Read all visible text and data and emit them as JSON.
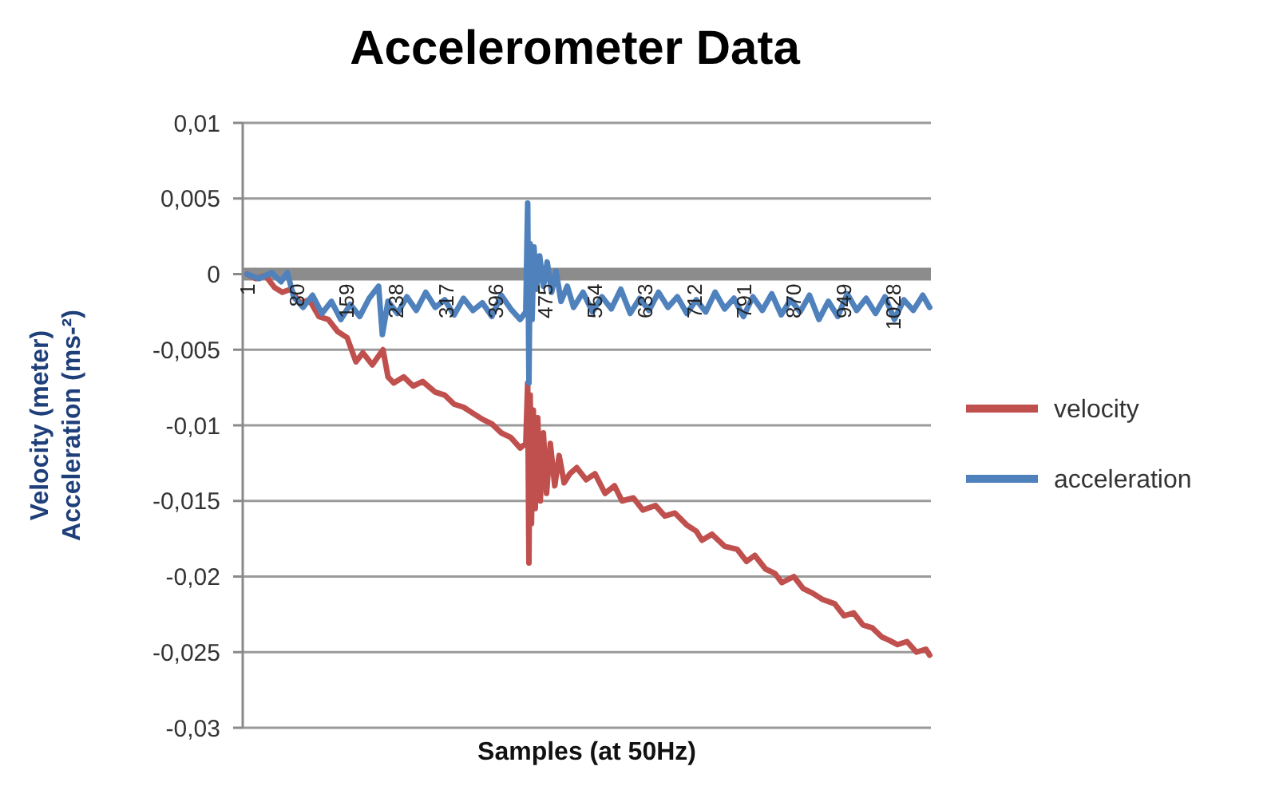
{
  "chart_data": {
    "type": "line",
    "title": "Accelerometer Data",
    "xlabel": "Samples (at 50Hz)",
    "ylabel": "Velocity (meter)\nAcceleration (ms-²)",
    "xlim": [
      -6,
      1088
    ],
    "xticks": [
      1,
      80,
      159,
      238,
      317,
      396,
      475,
      554,
      633,
      712,
      791,
      870,
      949,
      1028
    ],
    "ylim": [
      -0.03,
      0.01
    ],
    "yticks": [
      {
        "value": -0.03,
        "label": "-0,03"
      },
      {
        "value": -0.025,
        "label": "-0,025"
      },
      {
        "value": -0.02,
        "label": "-0,02"
      },
      {
        "value": -0.015,
        "label": "-0,015"
      },
      {
        "value": -0.01,
        "label": "-0,01"
      },
      {
        "value": -0.005,
        "label": "-0,005"
      },
      0,
      {
        "value": 0.005,
        "label": "0,005"
      },
      {
        "value": 0.01,
        "label": "0,01"
      }
    ],
    "grid": "y",
    "legend": "right",
    "marker": "none",
    "line_style": "solid",
    "series": [
      {
        "name": "velocity",
        "color": "#c0504d",
        "x": [
          1,
          15,
          30,
          45,
          57,
          70,
          85,
          100,
          115,
          130,
          145,
          160,
          174,
          185,
          200,
          217,
          225,
          234,
          250,
          265,
          280,
          300,
          315,
          330,
          345,
          360,
          375,
          390,
          405,
          420,
          435,
          444,
          447,
          449,
          451,
          453,
          456,
          459,
          463,
          467,
          472,
          477,
          483,
          490,
          497,
          505,
          514,
          525,
          540,
          554,
          570,
          585,
          597,
          615,
          630,
          650,
          665,
          681,
          700,
          715,
          724,
          740,
          760,
          780,
          795,
          808,
          825,
          840,
          851,
          870,
          885,
          900,
          915,
          935,
          950,
          965,
          980,
          995,
          1010,
          1021,
          1035,
          1050,
          1065,
          1080,
          1086
        ],
        "values": [
          0,
          -0.0003,
          -0.0001,
          -0.0009,
          -0.0012,
          -0.001,
          -0.0019,
          -0.0017,
          -0.0028,
          -0.003,
          -0.0038,
          -0.0042,
          -0.0058,
          -0.0052,
          -0.006,
          -0.005,
          -0.0068,
          -0.0072,
          -0.0068,
          -0.0074,
          -0.0071,
          -0.0078,
          -0.008,
          -0.0086,
          -0.0088,
          -0.0092,
          -0.0096,
          -0.0099,
          -0.0105,
          -0.0108,
          -0.0115,
          -0.0112,
          -0.0072,
          -0.0191,
          -0.008,
          -0.0165,
          -0.009,
          -0.0155,
          -0.0095,
          -0.015,
          -0.0105,
          -0.0145,
          -0.0112,
          -0.014,
          -0.012,
          -0.0138,
          -0.0132,
          -0.0128,
          -0.0136,
          -0.0132,
          -0.0145,
          -0.014,
          -0.015,
          -0.0148,
          -0.0156,
          -0.0153,
          -0.016,
          -0.0158,
          -0.0166,
          -0.017,
          -0.0176,
          -0.0172,
          -0.018,
          -0.0182,
          -0.019,
          -0.0186,
          -0.0195,
          -0.0198,
          -0.0204,
          -0.02,
          -0.0208,
          -0.0211,
          -0.0215,
          -0.0218,
          -0.0226,
          -0.0224,
          -0.0232,
          -0.0234,
          -0.024,
          -0.0242,
          -0.0245,
          -0.0243,
          -0.025,
          -0.0248,
          -0.0252
        ]
      },
      {
        "name": "acceleration",
        "color": "#4f81bd",
        "x": [
          1,
          20,
          40,
          55,
          65,
          75,
          90,
          105,
          120,
          135,
          150,
          165,
          180,
          195,
          210,
          216,
          225,
          240,
          255,
          270,
          285,
          300,
          315,
          330,
          345,
          360,
          375,
          390,
          405,
          420,
          435,
          444,
          447,
          449,
          451,
          454,
          457,
          461,
          466,
          472,
          478,
          485,
          492,
          500,
          510,
          520,
          535,
          550,
          565,
          580,
          595,
          610,
          625,
          640,
          655,
          670,
          685,
          700,
          715,
          730,
          745,
          760,
          775,
          790,
          805,
          820,
          835,
          850,
          865,
          880,
          895,
          910,
          925,
          940,
          955,
          970,
          985,
          1000,
          1015,
          1030,
          1045,
          1060,
          1075,
          1086
        ],
        "values": [
          0,
          -0.0003,
          0.0001,
          -0.0005,
          0.0001,
          -0.0015,
          -0.0022,
          -0.0014,
          -0.0026,
          -0.0018,
          -0.003,
          -0.002,
          -0.0028,
          -0.0016,
          -0.0008,
          -0.004,
          -0.0018,
          -0.0026,
          -0.0015,
          -0.0024,
          -0.0012,
          -0.0022,
          -0.0017,
          -0.0027,
          -0.0016,
          -0.0024,
          -0.0019,
          -0.0028,
          -0.0014,
          -0.0023,
          -0.003,
          -0.0025,
          0.0047,
          -0.0072,
          0.002,
          -0.003,
          0.0018,
          -0.001,
          0.0012,
          -0.0008,
          0.0008,
          -0.0012,
          0.0002,
          -0.0018,
          -0.0008,
          -0.0022,
          -0.0012,
          -0.0025,
          -0.0015,
          -0.0023,
          -0.001,
          -0.0026,
          -0.0016,
          -0.0024,
          -0.0012,
          -0.0022,
          -0.0015,
          -0.0026,
          -0.0017,
          -0.0025,
          -0.0012,
          -0.0023,
          -0.0016,
          -0.0028,
          -0.0015,
          -0.0024,
          -0.0013,
          -0.0027,
          -0.0017,
          -0.0025,
          -0.0014,
          -0.003,
          -0.0018,
          -0.0028,
          -0.0013,
          -0.0024,
          -0.0016,
          -0.0026,
          -0.0015,
          -0.003,
          -0.0017,
          -0.0024,
          -0.0014,
          -0.0022
        ]
      }
    ]
  }
}
